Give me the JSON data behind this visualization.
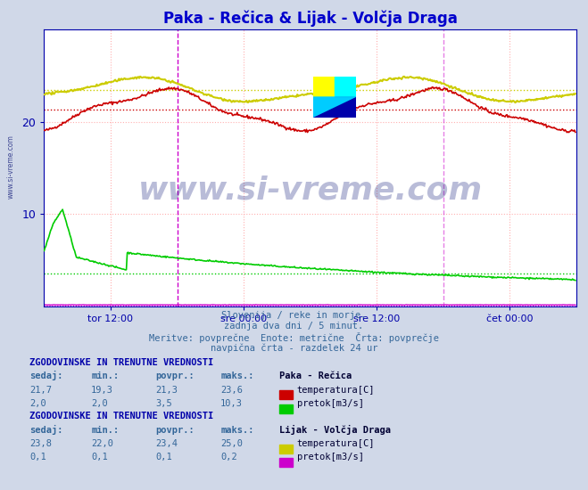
{
  "title": "Paka - Rečica & Lijak - Volčja Draga",
  "title_color": "#0000cc",
  "bg_color": "#d0d8e8",
  "plot_bg_color": "#ffffff",
  "grid_color": "#ffb0b0",
  "grid_style": ":",
  "xlim": [
    0,
    576
  ],
  "ylim": [
    0,
    30
  ],
  "watermark_text": "www.si-vreme.com",
  "watermark_color": "#1a237e",
  "watermark_alpha": 0.3,
  "sidebar_text": "www.si-vreme.com",
  "sidebar_color": "#1a237e",
  "footnote_lines": [
    "Slovenija / reke in morje.",
    "zadnja dva dni / 5 minut.",
    "Meritve: povprečne  Enote: metrične  Črta: povprečje",
    "navpična črta - razdelek 24 ur"
  ],
  "footnote_color": "#336699",
  "table1_header": "ZGODOVINSKE IN TRENUTNE VREDNOSTI",
  "table1_station": "Paka - Rečica",
  "table1_cols": [
    "sedaj:",
    "min.:",
    "povpr.:",
    "maks.:"
  ],
  "table1_row1": [
    "21,7",
    "19,3",
    "21,3",
    "23,6"
  ],
  "table1_row2": [
    "2,0",
    "2,0",
    "3,5",
    "10,3"
  ],
  "table1_legend": [
    "temperatura[C]",
    "pretok[m3/s]"
  ],
  "table1_colors": [
    "#cc0000",
    "#00cc00"
  ],
  "table2_header": "ZGODOVINSKE IN TRENUTNE VREDNOSTI",
  "table2_station": "Lijak - Volčja Draga",
  "table2_cols": [
    "sedaj:",
    "min.:",
    "povpr.:",
    "maks.:"
  ],
  "table2_row1": [
    "23,8",
    "22,0",
    "23,4",
    "25,0"
  ],
  "table2_row2": [
    "0,1",
    "0,1",
    "0,1",
    "0,2"
  ],
  "table2_legend": [
    "temperatura[C]",
    "pretok[m3/s]"
  ],
  "table2_colors": [
    "#cccc00",
    "#cc00cc"
  ],
  "avg_line_paka_temp": 21.3,
  "avg_line_paka_pretok": 3.5,
  "avg_line_lijak_temp": 23.4,
  "avg_line_lijak_pretok": 0.1,
  "midnight1_x": 144,
  "midnight2_x": 432,
  "n_points": 576
}
